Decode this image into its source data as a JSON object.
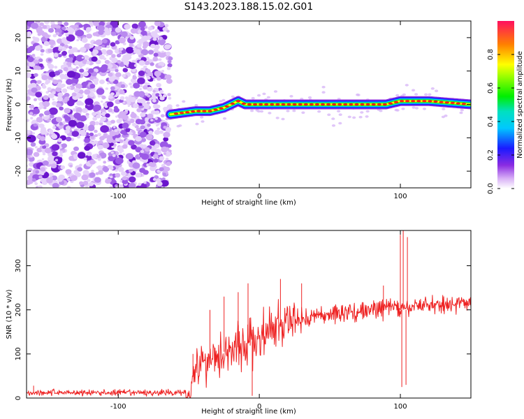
{
  "title": "S143.2023.188.15.02.G01",
  "chart_data": [
    {
      "type": "heatmap",
      "xlabel": "Height of straight line (km)",
      "ylabel": "Frequency (Hz)",
      "xlim": [
        -165,
        150
      ],
      "ylim": [
        -25,
        25
      ],
      "x_ticks": [
        -100,
        0,
        100
      ],
      "y_ticks": [
        -20,
        -10,
        0,
        10,
        20
      ],
      "colorbar": {
        "label": "Normalized spectral amplitude",
        "range": [
          0,
          1
        ],
        "ticks": [
          0.0,
          0.2,
          0.4,
          0.6,
          0.8
        ]
      },
      "noise_region_x": [
        -165,
        -63
      ],
      "ridge": {
        "x": [
          -63,
          -45,
          -35,
          -25,
          -15,
          -10,
          0,
          20,
          40,
          60,
          80,
          90,
          100,
          120,
          150
        ],
        "frequency_hz": [
          -3,
          -2,
          -2,
          -1,
          1,
          0,
          0,
          0,
          0,
          0,
          0,
          0,
          1,
          1,
          0
        ]
      }
    },
    {
      "type": "line",
      "xlabel": "Height of straight line (km)",
      "ylabel": "SNR (10 * v/v)",
      "xlim": [
        -165,
        150
      ],
      "ylim": [
        0,
        380
      ],
      "x_ticks": [
        -100,
        0,
        100
      ],
      "y_ticks": [
        0,
        100,
        200,
        300
      ],
      "series": [
        {
          "color": "#ee2222",
          "x": [
            -165,
            -140,
            -120,
            -100,
            -80,
            -60,
            -50,
            -45,
            -40,
            -30,
            -20,
            -10,
            0,
            10,
            20,
            30,
            40,
            50,
            60,
            70,
            80,
            90,
            95,
            100,
            105,
            110,
            120,
            130,
            140,
            150
          ],
          "y": [
            12,
            13,
            12,
            12,
            12,
            12,
            15,
            70,
            80,
            100,
            110,
            120,
            135,
            155,
            170,
            180,
            185,
            190,
            195,
            195,
            200,
            205,
            210,
            200,
            200,
            210,
            212,
            212,
            214,
            215
          ]
        }
      ],
      "spikes": [
        {
          "x": -160,
          "y": 28
        },
        {
          "x": -47,
          "y": 100
        },
        {
          "x": -35,
          "y": 200
        },
        {
          "x": -25,
          "y": 230
        },
        {
          "x": -15,
          "y": 240
        },
        {
          "x": -8,
          "y": 260
        },
        {
          "x": -5,
          "y": 5
        },
        {
          "x": 15,
          "y": 270
        },
        {
          "x": 30,
          "y": 260
        },
        {
          "x": 88,
          "y": 255
        },
        {
          "x": 100,
          "y": 370
        },
        {
          "x": 101,
          "y": 25
        },
        {
          "x": 102,
          "y": 390
        },
        {
          "x": 104,
          "y": 30
        },
        {
          "x": 105,
          "y": 365
        }
      ]
    }
  ]
}
